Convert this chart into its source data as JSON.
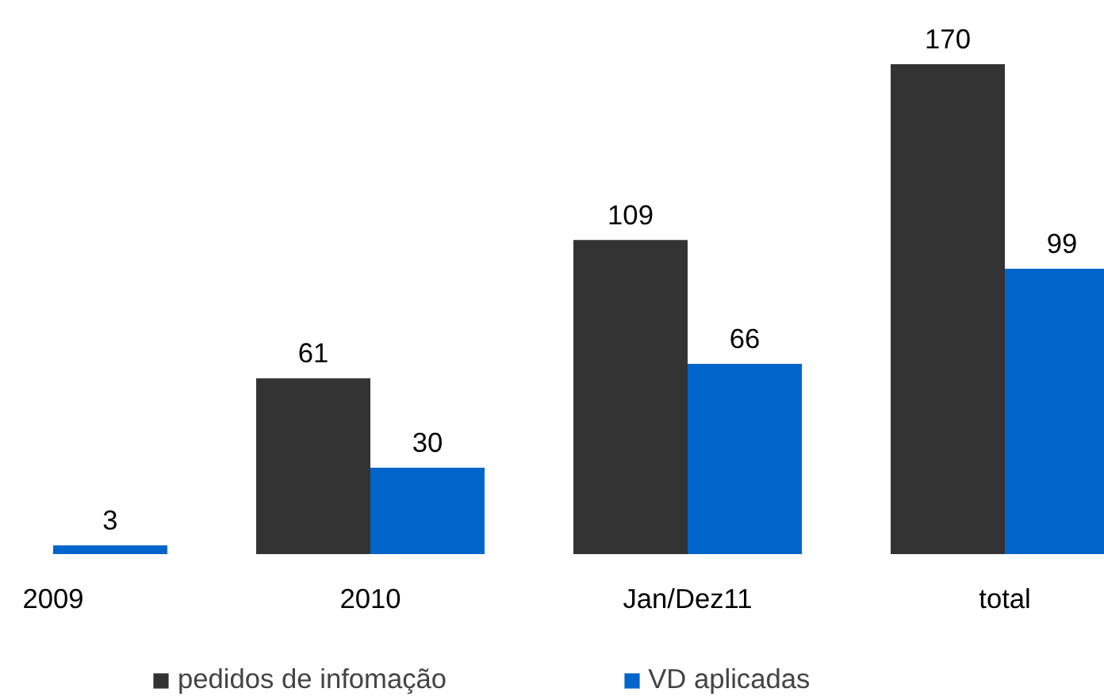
{
  "chart_data": {
    "type": "bar",
    "categories": [
      "2009",
      "2010",
      "Jan/Dez11",
      "total"
    ],
    "series": [
      {
        "name": "pedidos de infomação",
        "color": "#333333",
        "values": [
          null,
          61,
          109,
          170
        ]
      },
      {
        "name": "VD aplicadas",
        "color": "#0066cc",
        "values": [
          3,
          30,
          66,
          99
        ]
      }
    ],
    "data_labels": true,
    "legend": "bottom"
  }
}
